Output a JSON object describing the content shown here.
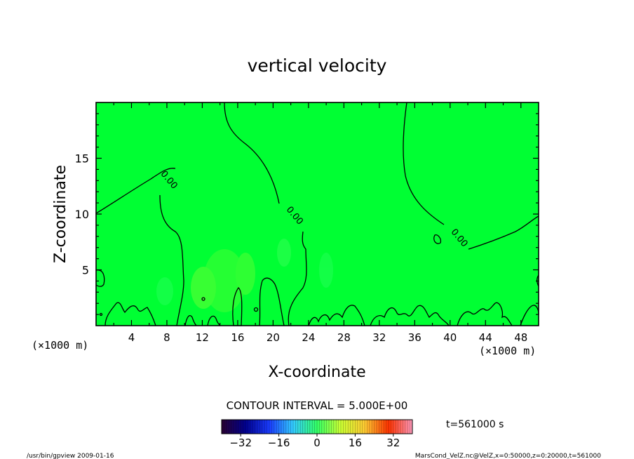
{
  "chart_data": {
    "type": "heatmap",
    "title": "vertical velocity",
    "xlabel": "X-coordinate",
    "ylabel": "Z-coordinate",
    "x_unit": "(×1000 m)",
    "x_ticks": [
      4,
      8,
      12,
      16,
      20,
      24,
      28,
      32,
      36,
      40,
      44,
      48
    ],
    "y_ticks": [
      5,
      10,
      15
    ],
    "xlim": [
      0,
      50
    ],
    "ylim": [
      0,
      20
    ],
    "fill_color": "#00ff33",
    "contour_labels": [
      {
        "text": "0.00",
        "x": 8.0,
        "z": 12.9
      },
      {
        "text": "0.00",
        "x": 22.2,
        "z": 9.7
      },
      {
        "text": "0.00",
        "x": 40.8,
        "z": 7.7
      }
    ],
    "contour_interval": "CONTOUR INTERVAL = 5.000E+00",
    "colorbar": {
      "range": [
        -40,
        40
      ],
      "ticks": [
        -32,
        -16,
        0,
        16,
        32
      ],
      "colors": [
        "#2a0033",
        "#00008f",
        "#1a3cff",
        "#33ccff",
        "#33ff66",
        "#ccff33",
        "#ffcc33",
        "#ff3300",
        "#ff99bb"
      ]
    },
    "time_label": "t=561000 s"
  },
  "footer": {
    "left": "/usr/bin/gpview   2009-01-16",
    "right": "MarsCond_VelZ.nc@VelZ,x=0:50000,z=0:20000,t=561000"
  }
}
